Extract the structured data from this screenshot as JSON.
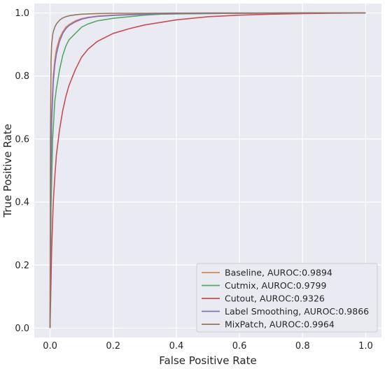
{
  "chart_data": {
    "type": "line",
    "title": "",
    "xlabel": "False Positive Rate",
    "ylabel": "True Positive Rate",
    "xlim": [
      -0.05,
      1.05
    ],
    "ylim": [
      -0.03,
      1.03
    ],
    "xticks": [
      "0.0",
      "0.2",
      "0.4",
      "0.6",
      "0.8",
      "1.0"
    ],
    "yticks": [
      "0.0",
      "0.2",
      "0.4",
      "0.6",
      "0.8",
      "1.0"
    ],
    "grid": true,
    "background": "#eaeaf2",
    "legend_position": "lower-right",
    "series": [
      {
        "name": "Baseline, AUROC:0.9894",
        "color": "#dd8452",
        "x": [
          0,
          0.002,
          0.005,
          0.01,
          0.015,
          0.02,
          0.03,
          0.04,
          0.05,
          0.06,
          0.08,
          0.1,
          0.12,
          0.15,
          0.2,
          0.25,
          0.3,
          0.4,
          0.6,
          0.8,
          1.0
        ],
        "y": [
          0,
          0.45,
          0.68,
          0.8,
          0.85,
          0.885,
          0.92,
          0.94,
          0.955,
          0.963,
          0.975,
          0.982,
          0.986,
          0.99,
          0.993,
          0.995,
          0.997,
          0.998,
          0.999,
          1.0,
          1.0
        ]
      },
      {
        "name": "Cutmix, AUROC:0.9799",
        "color": "#55a868",
        "x": [
          0,
          0.003,
          0.008,
          0.015,
          0.02,
          0.03,
          0.04,
          0.05,
          0.06,
          0.08,
          0.1,
          0.12,
          0.15,
          0.2,
          0.25,
          0.3,
          0.35,
          0.4,
          0.5,
          0.6,
          0.8,
          1.0
        ],
        "y": [
          0,
          0.38,
          0.6,
          0.72,
          0.76,
          0.82,
          0.865,
          0.895,
          0.915,
          0.935,
          0.955,
          0.965,
          0.975,
          0.983,
          0.988,
          0.993,
          0.996,
          0.997,
          0.998,
          0.999,
          1.0,
          1.0
        ]
      },
      {
        "name": "Cutout, AUROC:0.9326",
        "color": "#c44e52",
        "x": [
          0,
          0.003,
          0.005,
          0.01,
          0.015,
          0.02,
          0.03,
          0.04,
          0.05,
          0.06,
          0.08,
          0.1,
          0.12,
          0.15,
          0.2,
          0.25,
          0.3,
          0.35,
          0.4,
          0.5,
          0.6,
          0.7,
          0.8,
          0.9,
          1.0
        ],
        "y": [
          0,
          0.15,
          0.25,
          0.4,
          0.48,
          0.55,
          0.63,
          0.69,
          0.735,
          0.77,
          0.82,
          0.86,
          0.885,
          0.91,
          0.935,
          0.95,
          0.962,
          0.97,
          0.978,
          0.988,
          0.993,
          0.996,
          0.998,
          0.999,
          1.0
        ]
      },
      {
        "name": "Label Smoothing, AUROC:0.9866",
        "color": "#8172b3",
        "x": [
          0,
          0.002,
          0.005,
          0.01,
          0.015,
          0.02,
          0.03,
          0.04,
          0.05,
          0.06,
          0.08,
          0.1,
          0.12,
          0.15,
          0.2,
          0.25,
          0.3,
          0.4,
          0.6,
          0.8,
          1.0
        ],
        "y": [
          0,
          0.42,
          0.65,
          0.78,
          0.835,
          0.87,
          0.91,
          0.935,
          0.95,
          0.96,
          0.972,
          0.98,
          0.985,
          0.989,
          0.992,
          0.994,
          0.996,
          0.998,
          0.999,
          1.0,
          1.0
        ]
      },
      {
        "name": "MixPatch, AUROC:0.9964",
        "color": "#937860",
        "x": [
          0,
          0.001,
          0.003,
          0.005,
          0.008,
          0.01,
          0.015,
          0.02,
          0.03,
          0.04,
          0.05,
          0.06,
          0.08,
          0.1,
          0.12,
          0.15,
          0.2,
          0.3,
          0.5,
          1.0
        ],
        "y": [
          0,
          0.6,
          0.85,
          0.9,
          0.93,
          0.94,
          0.955,
          0.965,
          0.977,
          0.984,
          0.988,
          0.991,
          0.994,
          0.996,
          0.997,
          0.998,
          0.999,
          0.999,
          1.0,
          1.0
        ]
      }
    ]
  }
}
